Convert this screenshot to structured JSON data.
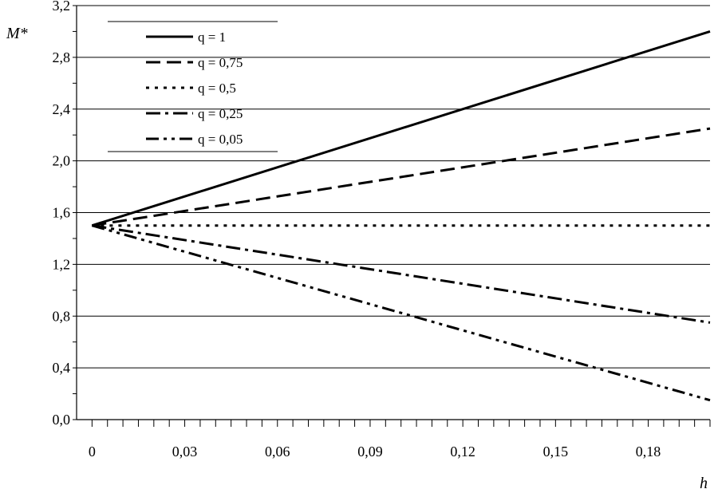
{
  "chart_data": {
    "type": "line",
    "xlabel": "h",
    "ylabel": "M*",
    "xlim": [
      -0.005,
      0.2
    ],
    "ylim": [
      0.0,
      3.2
    ],
    "x_ticks": [
      {
        "value": 0,
        "label": "0"
      },
      {
        "value": 0.03,
        "label": "0,03"
      },
      {
        "value": 0.06,
        "label": "0,06"
      },
      {
        "value": 0.09,
        "label": "0,09"
      },
      {
        "value": 0.12,
        "label": "0,12"
      },
      {
        "value": 0.15,
        "label": "0,15"
      },
      {
        "value": 0.18,
        "label": "0,18"
      }
    ],
    "y_ticks": [
      {
        "value": 0.0,
        "label": "0,0"
      },
      {
        "value": 0.4,
        "label": "0,4"
      },
      {
        "value": 0.8,
        "label": "0,8"
      },
      {
        "value": 1.2,
        "label": "1,2"
      },
      {
        "value": 1.6,
        "label": "1,6"
      },
      {
        "value": 2.0,
        "label": "2,0"
      },
      {
        "value": 2.4,
        "label": "2,4"
      },
      {
        "value": 2.8,
        "label": "2,8"
      },
      {
        "value": 3.2,
        "label": "3,2"
      }
    ],
    "grid": {
      "horizontal": true,
      "vertical": false
    },
    "legend_position": "top-left",
    "series": [
      {
        "name": "q = 1",
        "style": "solid",
        "x": [
          0,
          0.2
        ],
        "y": [
          1.5,
          3.0
        ]
      },
      {
        "name": "q = 0,75",
        "style": "dash",
        "x": [
          0,
          0.2
        ],
        "y": [
          1.5,
          2.25
        ]
      },
      {
        "name": "q = 0,5",
        "style": "dot",
        "x": [
          0,
          0.2
        ],
        "y": [
          1.5,
          1.5
        ]
      },
      {
        "name": "q = 0,25",
        "style": "dashdot",
        "x": [
          0,
          0.2
        ],
        "y": [
          1.5,
          0.75
        ]
      },
      {
        "name": "q = 0,05",
        "style": "dashdotdot",
        "x": [
          0,
          0.2
        ],
        "y": [
          1.5,
          0.15
        ]
      }
    ]
  }
}
